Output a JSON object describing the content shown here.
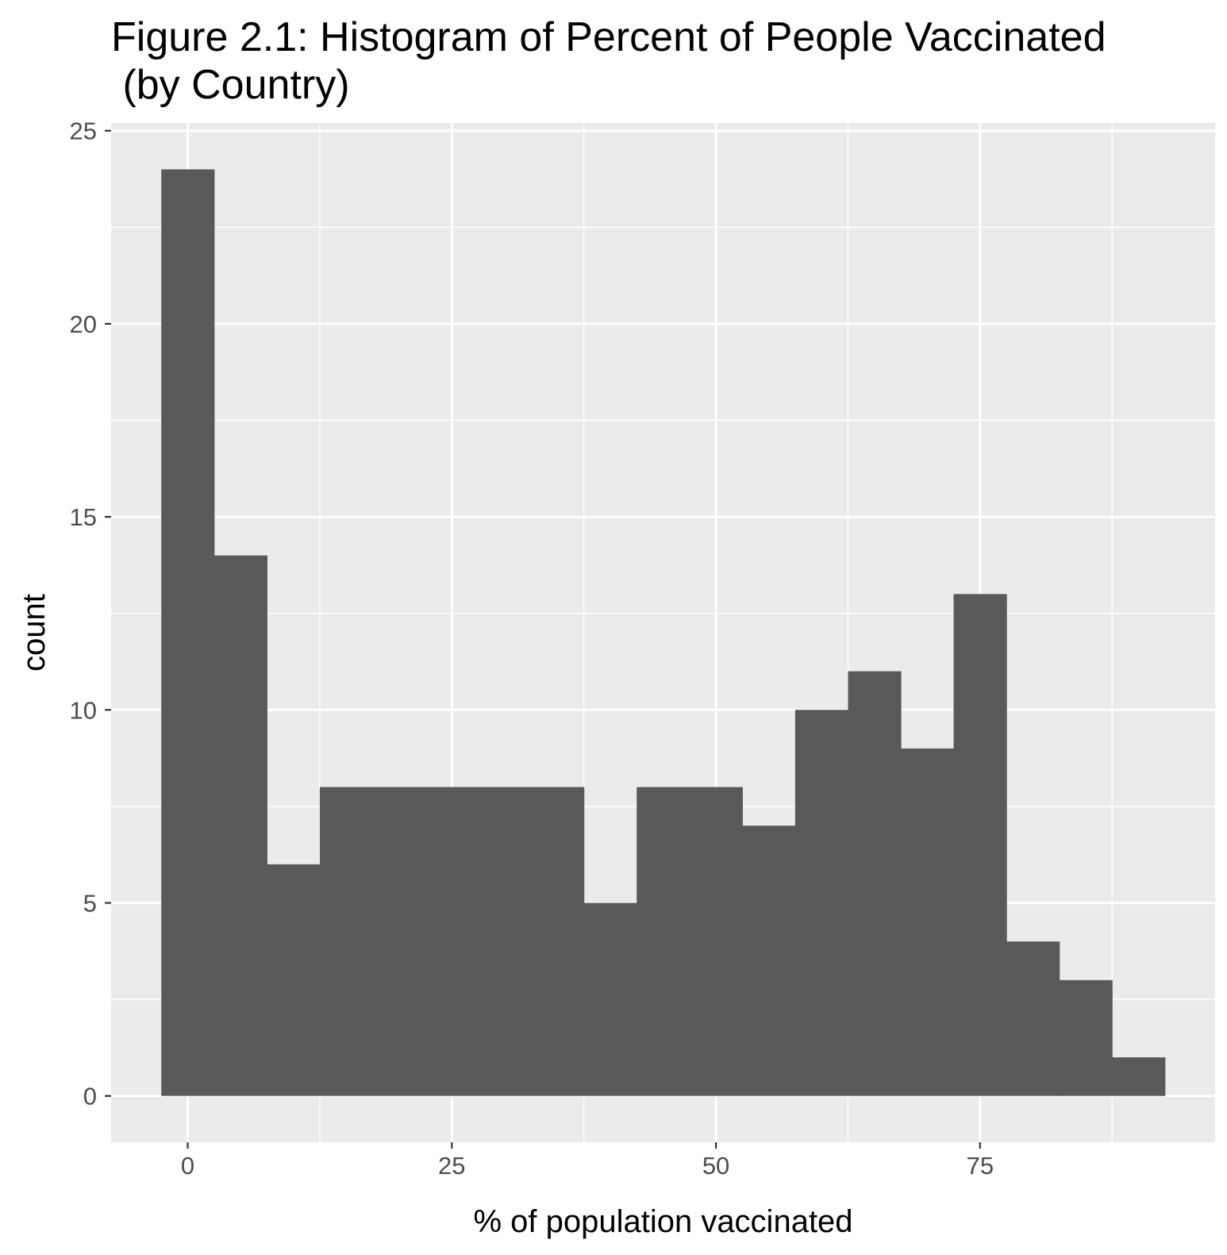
{
  "chart_data": {
    "type": "bar",
    "title_lines": [
      "Figure 2.1: Histogram of Percent of People Vaccinated",
      " (by Country)"
    ],
    "xlabel": "% of population vaccinated",
    "ylabel": "count",
    "bin_width": 5,
    "bins": [
      {
        "x0": -2.5,
        "x1": 2.5,
        "count": 24
      },
      {
        "x0": 2.5,
        "x1": 7.5,
        "count": 14
      },
      {
        "x0": 7.5,
        "x1": 12.5,
        "count": 6
      },
      {
        "x0": 12.5,
        "x1": 17.5,
        "count": 8
      },
      {
        "x0": 17.5,
        "x1": 22.5,
        "count": 8
      },
      {
        "x0": 22.5,
        "x1": 27.5,
        "count": 8
      },
      {
        "x0": 27.5,
        "x1": 32.5,
        "count": 8
      },
      {
        "x0": 32.5,
        "x1": 37.5,
        "count": 8
      },
      {
        "x0": 37.5,
        "x1": 42.5,
        "count": 5
      },
      {
        "x0": 42.5,
        "x1": 47.5,
        "count": 8
      },
      {
        "x0": 47.5,
        "x1": 52.5,
        "count": 8
      },
      {
        "x0": 52.5,
        "x1": 57.5,
        "count": 7
      },
      {
        "x0": 57.5,
        "x1": 62.5,
        "count": 10
      },
      {
        "x0": 62.5,
        "x1": 67.5,
        "count": 11
      },
      {
        "x0": 67.5,
        "x1": 72.5,
        "count": 9
      },
      {
        "x0": 72.5,
        "x1": 77.5,
        "count": 13
      },
      {
        "x0": 77.5,
        "x1": 82.5,
        "count": 4
      },
      {
        "x0": 82.5,
        "x1": 87.5,
        "count": 3
      },
      {
        "x0": 87.5,
        "x1": 92.5,
        "count": 1
      }
    ],
    "xlim": [
      -7.25,
      97.25
    ],
    "ylim": [
      -1.2,
      25.2
    ],
    "xticks": [
      0,
      25,
      50,
      75
    ],
    "xtick_labels": [
      "0",
      "25",
      "50",
      "75"
    ],
    "yticks": [
      0,
      5,
      10,
      15,
      20,
      25
    ],
    "ytick_labels": [
      "0",
      "5",
      "10",
      "15",
      "20",
      "25"
    ],
    "grid": true,
    "colors": {
      "panel_background": "#ebebeb",
      "grid_major": "#ffffff",
      "grid_minor": "#ffffff",
      "bar_fill": "#595959",
      "tick_text": "#4d4d4d",
      "tick_mark": "#333333"
    }
  }
}
